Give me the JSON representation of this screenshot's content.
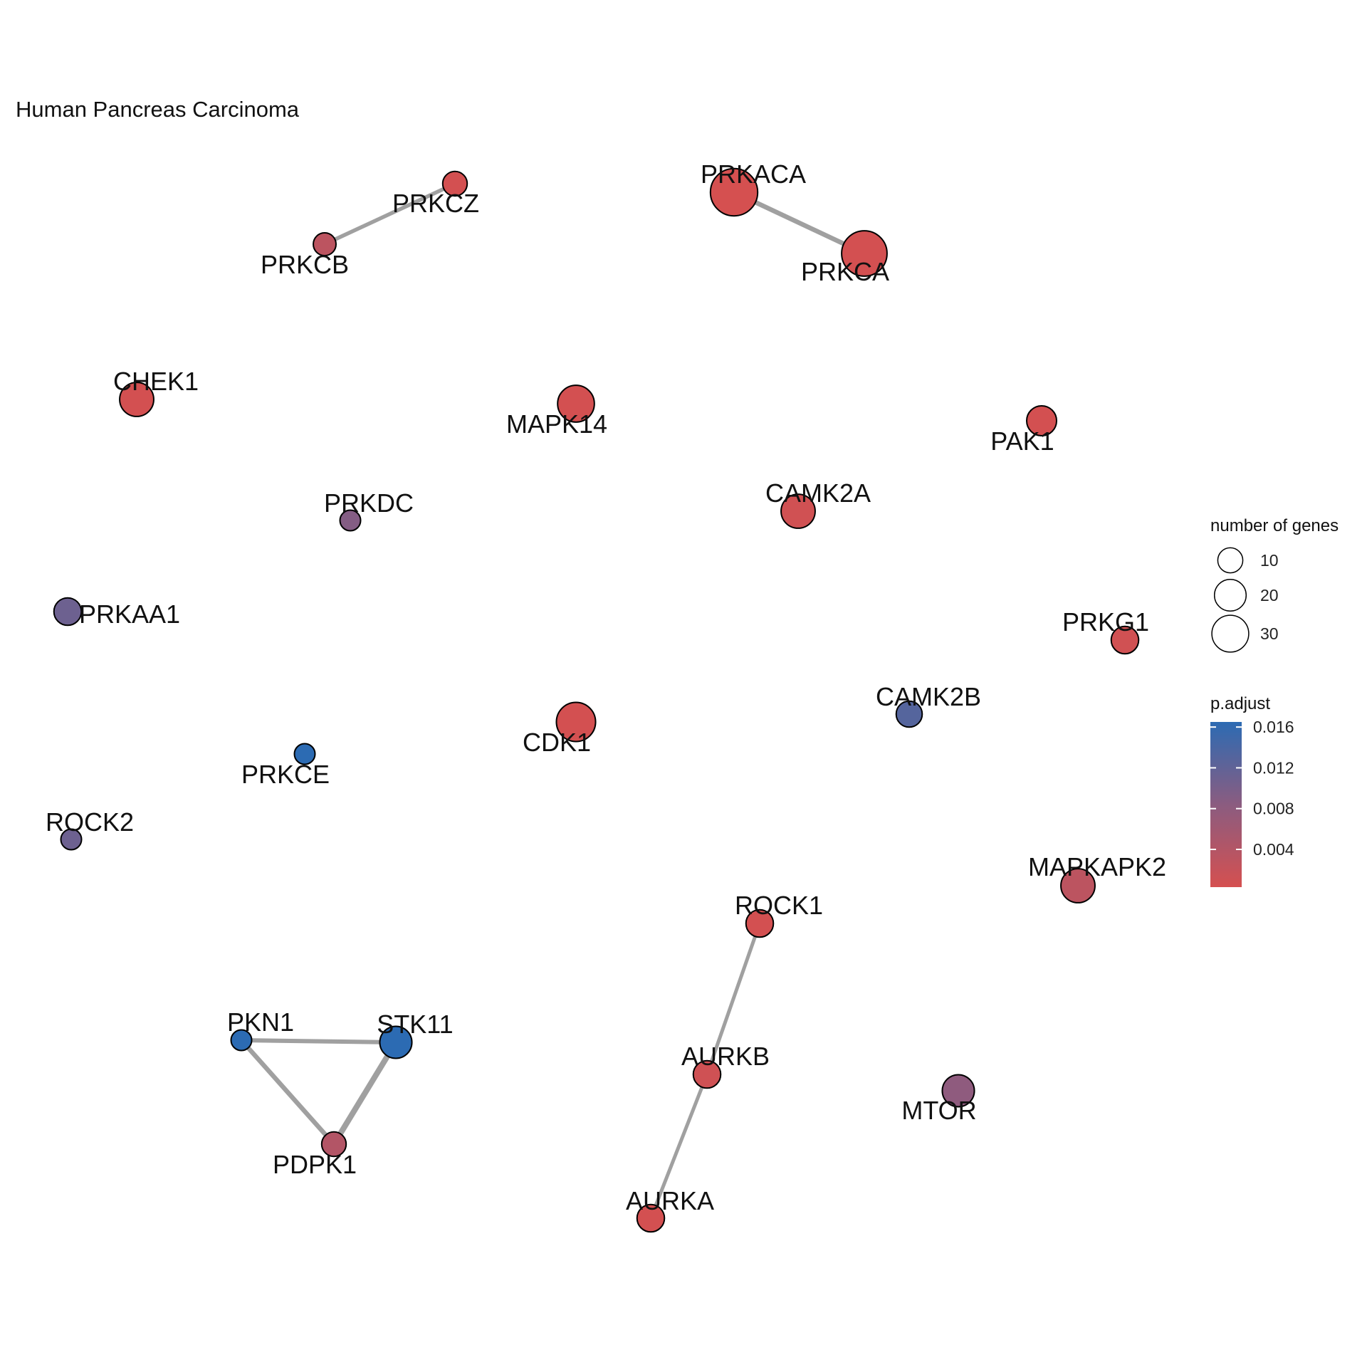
{
  "title": "Human Pancreas Carcinoma",
  "nodes": [
    {
      "id": "PRKCZ",
      "label": "PRKCZ",
      "genes": 4,
      "padj": 0.0005
    },
    {
      "id": "PRKCB",
      "label": "PRKCB",
      "genes": 3,
      "padj": 0.003
    },
    {
      "id": "PRKACA",
      "label": "PRKACA",
      "genes": 30,
      "padj": 0.0003
    },
    {
      "id": "PRKCA",
      "label": "PRKCA",
      "genes": 27,
      "padj": 0.0005
    },
    {
      "id": "CHEK1",
      "label": "CHEK1",
      "genes": 12,
      "padj": 0.0005
    },
    {
      "id": "MAPK14",
      "label": "MAPK14",
      "genes": 15,
      "padj": 0.0005
    },
    {
      "id": "PAK1",
      "label": "PAK1",
      "genes": 8,
      "padj": 0.0005
    },
    {
      "id": "CAMK2A",
      "label": "CAMK2A",
      "genes": 12,
      "padj": 0.0008
    },
    {
      "id": "PRKDC",
      "label": "PRKDC",
      "genes": 2,
      "padj": 0.009
    },
    {
      "id": "PRKAA1",
      "label": "PRKAA1",
      "genes": 6,
      "padj": 0.011
    },
    {
      "id": "PRKG1",
      "label": "PRKG1",
      "genes": 6,
      "padj": 0.0008
    },
    {
      "id": "CAMK2B",
      "label": "CAMK2B",
      "genes": 5,
      "padj": 0.013
    },
    {
      "id": "CDK1",
      "label": "CDK1",
      "genes": 18,
      "padj": 0.0005
    },
    {
      "id": "PRKCE",
      "label": "PRKCE",
      "genes": 2,
      "padj": 0.0165
    },
    {
      "id": "ROCK2",
      "label": "ROCK2",
      "genes": 2,
      "padj": 0.011
    },
    {
      "id": "MAPKAPK2",
      "label": "MAPKAPK2",
      "genes": 12,
      "padj": 0.003
    },
    {
      "id": "ROCK1",
      "label": "ROCK1",
      "genes": 6,
      "padj": 0.0005
    },
    {
      "id": "PKN1",
      "label": "PKN1",
      "genes": 2,
      "padj": 0.0165
    },
    {
      "id": "STK11",
      "label": "STK11",
      "genes": 10,
      "padj": 0.0165
    },
    {
      "id": "AURKB",
      "label": "AURKB",
      "genes": 6,
      "padj": 0.001
    },
    {
      "id": "MTOR",
      "label": "MTOR",
      "genes": 10,
      "padj": 0.008
    },
    {
      "id": "PDPK1",
      "label": "PDPK1",
      "genes": 4,
      "padj": 0.004
    },
    {
      "id": "AURKA",
      "label": "AURKA",
      "genes": 6,
      "padj": 0.0005
    }
  ],
  "edges": [
    {
      "source": "PRKCB",
      "target": "PRKCZ",
      "weight": 0.5
    },
    {
      "source": "PRKACA",
      "target": "PRKCA",
      "weight": 0.7
    },
    {
      "source": "PKN1",
      "target": "STK11",
      "weight": 0.6
    },
    {
      "source": "PKN1",
      "target": "PDPK1",
      "weight": 0.7
    },
    {
      "source": "STK11",
      "target": "PDPK1",
      "weight": 1.0
    },
    {
      "source": "ROCK1",
      "target": "AURKB",
      "weight": 0.4
    },
    {
      "source": "AURKB",
      "target": "AURKA",
      "weight": 0.4
    }
  ],
  "legend": {
    "size_title": "number of genes",
    "size_items": [
      {
        "label": "10",
        "value": 10
      },
      {
        "label": "20",
        "value": 20
      },
      {
        "label": "30",
        "value": 30
      }
    ],
    "color_title": "p.adjust",
    "color_ticks": [
      {
        "label": "0.016",
        "value": 0.016
      },
      {
        "label": "0.012",
        "value": 0.012
      },
      {
        "label": "0.008",
        "value": 0.008
      },
      {
        "label": "0.004",
        "value": 0.004
      }
    ],
    "color_low": "#d55050",
    "color_high": "#2c6bb3"
  }
}
